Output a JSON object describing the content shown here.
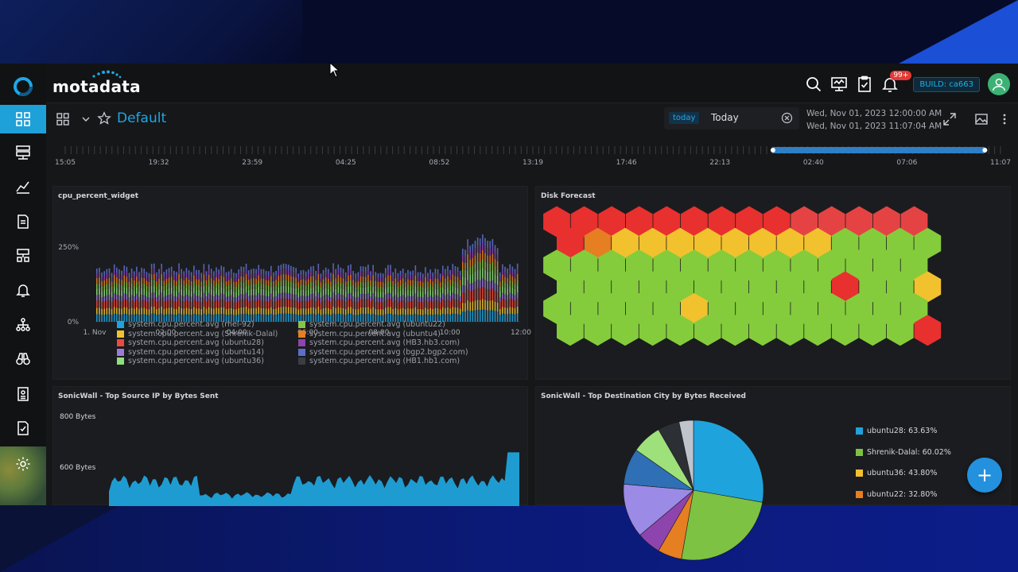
{
  "brand": {
    "name": "motadata"
  },
  "header": {
    "notification_count": "99+",
    "build": "BUILD: ca663",
    "icons": [
      "search-icon",
      "monitor-icon",
      "clipboard-check-icon",
      "bell-icon",
      "user-avatar-icon"
    ]
  },
  "sidebar": {
    "items": [
      "dashboard-icon",
      "server-icon",
      "metrics-icon",
      "document-icon",
      "network-icon",
      "alert-bell-icon",
      "topology-icon",
      "binoculars-icon",
      "report-icon",
      "audit-icon",
      "settings-icon"
    ]
  },
  "toolbar": {
    "dashboard_name": "Default",
    "today_tag": "today",
    "today_label": "Today",
    "date_from": "Wed, Nov 01, 2023 12:00:00 AM",
    "date_to": "Wed, Nov 01, 2023 11:07:04 AM"
  },
  "timeline": {
    "ticks": [
      "15:05",
      "19:32",
      "23:59",
      "04:25",
      "08:52",
      "13:19",
      "17:46",
      "22:13",
      "02:40",
      "07:06",
      "11:07"
    ],
    "selection_start_frac": 0.755,
    "selection_end_frac": 0.985
  },
  "widgets": {
    "cpu": {
      "title": "cpu_percent_widget",
      "y_ticks": [
        "250%",
        "0%"
      ],
      "x_ticks": [
        "1. Nov",
        "02:00",
        "04:00",
        "06:00",
        "08:00",
        "10:00",
        "12:00"
      ],
      "legend": [
        {
          "label": "system.cpu.percent.avg (rhel-92)",
          "color": "#1fa3dc"
        },
        {
          "label": "system.cpu.percent.avg (Shrenik-Dalal)",
          "color": "#f2c12e"
        },
        {
          "label": "system.cpu.percent.avg (ubuntu28)",
          "color": "#e84c3d"
        },
        {
          "label": "system.cpu.percent.avg (ubuntu14)",
          "color": "#9b7bd6"
        },
        {
          "label": "system.cpu.percent.avg (ubuntu36)",
          "color": "#8fe07a"
        },
        {
          "label": "system.cpu.percent.avg (ubuntu22)",
          "color": "#8bc34a"
        },
        {
          "label": "system.cpu.percent.avg (ubuntu4)",
          "color": "#e67e22"
        },
        {
          "label": "system.cpu.percent.avg (HB3.hb3.com)",
          "color": "#8e44ad"
        },
        {
          "label": "system.cpu.percent.avg (bgp2.bgp2.com)",
          "color": "#5b6fc9"
        },
        {
          "label": "system.cpu.percent.avg (HB1.hb1.com)",
          "color": "#3a3d42"
        }
      ]
    },
    "disk": {
      "title": "Disk Forecast",
      "rows": [
        [
          "r",
          "r",
          "r",
          "r",
          "r",
          "r",
          "r",
          "r",
          "r",
          "r",
          "r",
          "r",
          "r",
          "r"
        ],
        [
          "r",
          "o",
          "y",
          "y",
          "y",
          "y",
          "y",
          "y",
          "y",
          "y",
          "g",
          "g",
          "g",
          "g"
        ],
        [
          "g",
          "g",
          "g",
          "g",
          "g",
          "g",
          "g",
          "g",
          "g",
          "g",
          "g",
          "g",
          "g",
          "g"
        ],
        [
          "g",
          "g",
          "g",
          "g",
          "g",
          "g",
          "g",
          "g",
          "g",
          "g",
          "r",
          "g",
          "g",
          "y"
        ],
        [
          "g",
          "g",
          "g",
          "g",
          "g",
          "y",
          "g",
          "g",
          "g",
          "g",
          "g",
          "g",
          "g",
          "g"
        ],
        [
          "g",
          "g",
          "g",
          "g",
          "g",
          "g",
          "g",
          "g",
          "g",
          "g",
          "g",
          "g",
          "g",
          "r"
        ]
      ],
      "colors": {
        "r": "#e8302f",
        "r2": "#e54343",
        "o": "#e67e22",
        "y": "#f2c12e",
        "g": "#84cc3c"
      }
    },
    "sonic_src": {
      "title": "SonicWall - Top Source IP by Bytes Sent",
      "y_ticks": [
        "800 Bytes",
        "600 Bytes"
      ],
      "color": "#1fa3dc"
    },
    "sonic_dst": {
      "title": "SonicWall - Top Destination City by Bytes Received",
      "legend": [
        {
          "label": "ubuntu28: 63.63%",
          "color": "#1fa3dc"
        },
        {
          "label": "Shrenik-Dalal: 60.02%",
          "color": "#7dc242"
        },
        {
          "label": "ubuntu36: 43.80%",
          "color": "#f2c12e"
        },
        {
          "label": "ubuntu22: 32.80%",
          "color": "#e67e22"
        }
      ]
    }
  },
  "fab_label": "+"
}
